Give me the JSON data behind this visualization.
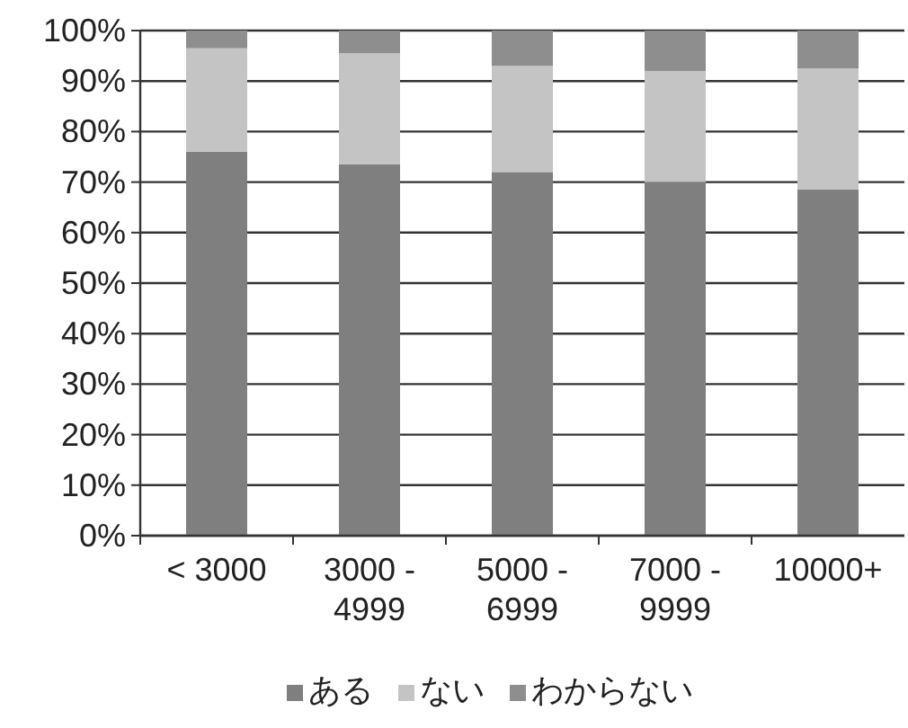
{
  "chart_data": {
    "type": "bar",
    "stacked": true,
    "categories": [
      "< 3000",
      "3000 - 4999",
      "5000 - 6999",
      "7000 - 9999",
      "10000+"
    ],
    "series": [
      {
        "name": "ある",
        "color": "#7f7f7f",
        "values": [
          76,
          73.5,
          72,
          70,
          68.5
        ]
      },
      {
        "name": "ない",
        "color": "#c4c4c4",
        "values": [
          20.5,
          22,
          21,
          22,
          24
        ]
      },
      {
        "name": "わからない",
        "color": "#8e8e8e",
        "values": [
          3.5,
          4.5,
          7,
          8,
          7.5
        ]
      }
    ],
    "ylim": [
      0,
      100
    ],
    "yticks": [
      {
        "value": 0,
        "label": "0%"
      },
      {
        "value": 10,
        "label": "10%"
      },
      {
        "value": 20,
        "label": "20%"
      },
      {
        "value": 30,
        "label": "30%"
      },
      {
        "value": 40,
        "label": "40%"
      },
      {
        "value": 50,
        "label": "50%"
      },
      {
        "value": 60,
        "label": "60%"
      },
      {
        "value": 70,
        "label": "70%"
      },
      {
        "value": 80,
        "label": "80%"
      },
      {
        "value": 90,
        "label": "90%"
      },
      {
        "value": 100,
        "label": "100%"
      }
    ],
    "grid": "y",
    "legend": "bottom"
  }
}
